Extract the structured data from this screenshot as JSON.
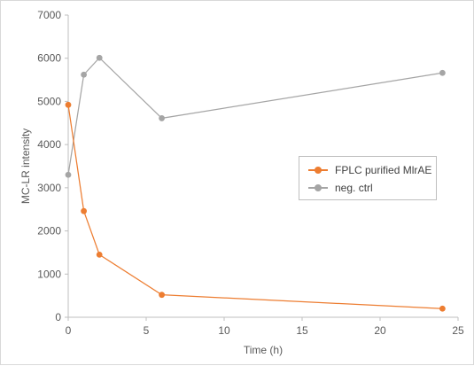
{
  "chart_data": {
    "type": "line",
    "title": "",
    "xlabel": "Time (h)",
    "ylabel": "MC-LR intensity",
    "xlim": [
      0,
      25
    ],
    "ylim": [
      0,
      7000
    ],
    "x_ticks": [
      0,
      5,
      10,
      15,
      20,
      25
    ],
    "y_ticks": [
      0,
      1000,
      2000,
      3000,
      4000,
      5000,
      6000,
      7000
    ],
    "grid": false,
    "legend_position": "right",
    "series": [
      {
        "name": "FPLC purified MlrAE",
        "color": "#ed7d31",
        "x": [
          0,
          1,
          2,
          6,
          24
        ],
        "y": [
          4920,
          2460,
          1450,
          520,
          200
        ]
      },
      {
        "name": "neg. ctrl",
        "color": "#a5a5a5",
        "x": [
          0,
          1,
          2,
          6,
          24
        ],
        "y": [
          3300,
          5620,
          6010,
          4610,
          5660
        ]
      }
    ]
  }
}
